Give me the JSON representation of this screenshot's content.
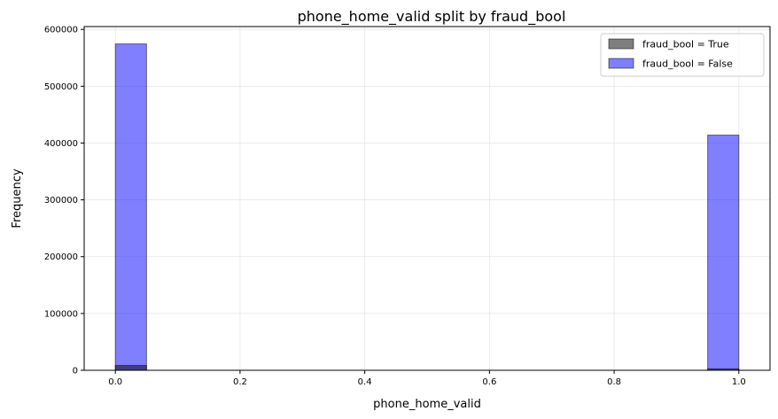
{
  "chart_data": {
    "type": "bar",
    "title": "phone_home_valid split by fraud_bool",
    "xlabel": "phone_home_valid",
    "ylabel": "Frequency",
    "xlim": [
      -0.05,
      1.05
    ],
    "ylim": [
      0,
      605000
    ],
    "xticks": [
      0.0,
      0.2,
      0.4,
      0.6,
      0.8,
      1.0
    ],
    "xtick_labels": [
      "0.0",
      "0.2",
      "0.4",
      "0.6",
      "0.8",
      "1.0"
    ],
    "yticks": [
      0,
      100000,
      200000,
      300000,
      400000,
      500000,
      600000
    ],
    "ytick_labels": [
      "0",
      "100000",
      "200000",
      "300000",
      "400000",
      "500000",
      "600000"
    ],
    "grid": true,
    "legend_position": "top-right",
    "bin_width": 0.05,
    "series": [
      {
        "name": "fraud_bool = True",
        "color": "#000000",
        "opacity": 0.5,
        "bins": [
          {
            "x0": 0.0,
            "x1": 0.05,
            "value": 8500
          },
          {
            "x0": 0.95,
            "x1": 1.0,
            "value": 2500
          }
        ]
      },
      {
        "name": "fraud_bool = False",
        "color": "#0000ff",
        "opacity": 0.5,
        "bins": [
          {
            "x0": 0.0,
            "x1": 0.05,
            "value": 574500
          },
          {
            "x0": 0.95,
            "x1": 1.0,
            "value": 414000
          }
        ]
      }
    ]
  }
}
